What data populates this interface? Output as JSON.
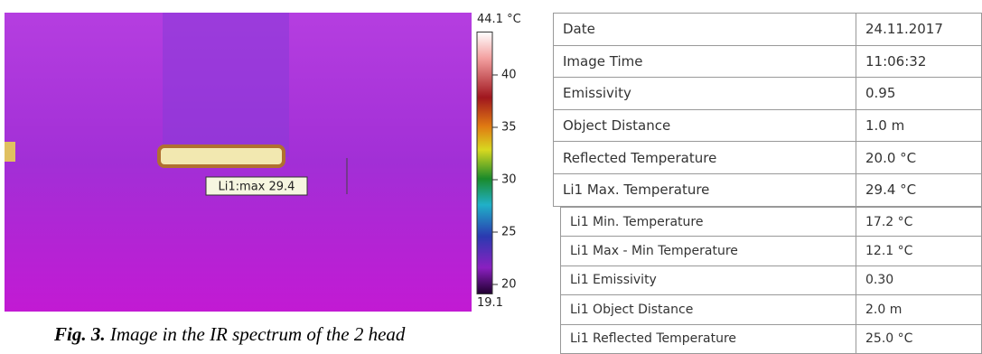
{
  "image": {
    "annotation": "Li1:max 29.4"
  },
  "colorbar": {
    "max": {
      "value": 44.1,
      "label": "44.1 °C"
    },
    "min": 19.1,
    "ticks": [
      40,
      35,
      30,
      25,
      20
    ]
  },
  "caption": {
    "label": "Fig. 3.",
    "text": "Image in the IR spectrum of the 2 head"
  },
  "table": {
    "rows": [
      [
        "Date",
        "24.11.2017"
      ],
      [
        "Image Time",
        "11:06:32"
      ],
      [
        "Emissivity",
        "0.95"
      ],
      [
        "Object Distance",
        "1.0 m"
      ],
      [
        "Reflected Temperature",
        "20.0 °C"
      ],
      [
        "Li1 Max. Temperature",
        "29.4 °C"
      ]
    ],
    "rows2": [
      [
        "Li1 Min. Temperature",
        "17.2 °C"
      ],
      [
        "Li1 Max - Min Temperature",
        "12.1 °C"
      ],
      [
        "Li1 Emissivity",
        "0.30"
      ],
      [
        "Li1 Object Distance",
        "2.0 m"
      ],
      [
        "Li1 Reflected Temperature",
        "25.0 °C"
      ]
    ]
  }
}
